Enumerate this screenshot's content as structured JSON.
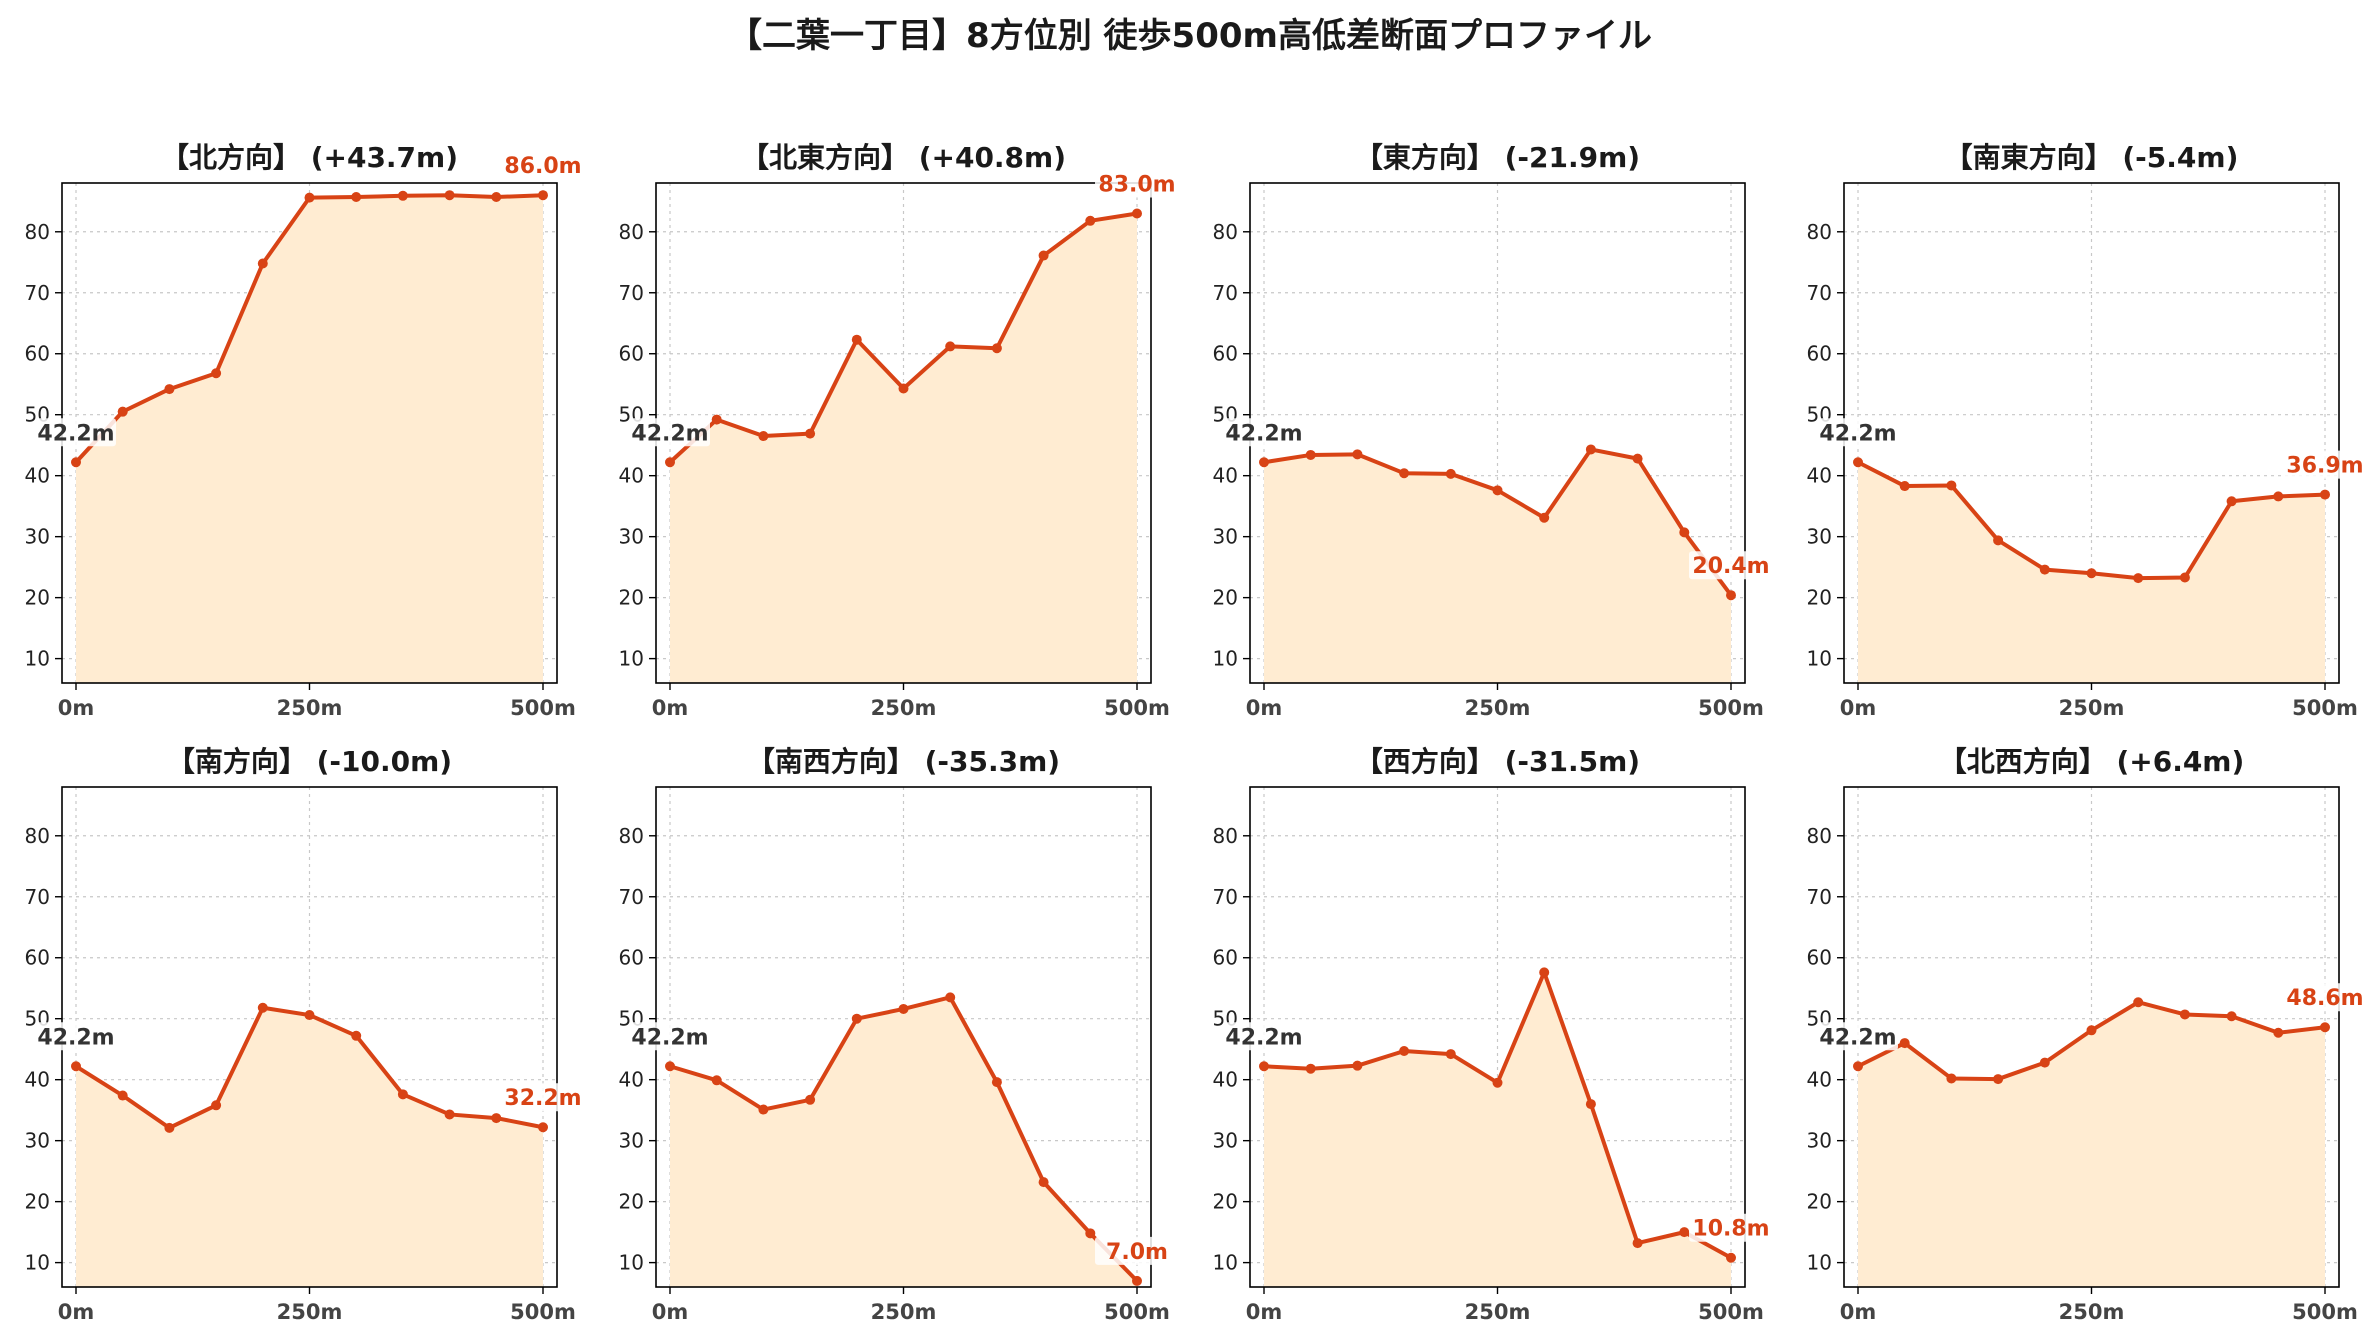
{
  "title": "【二葉一丁目】8方位別 徒歩500m高低差断面プロファイル",
  "colors": {
    "line": "#d84315",
    "fill": "#ffecd2",
    "start_label": "#333333",
    "end_label": "#d84315",
    "grid": "#c8c8c8"
  },
  "chart_data": [
    {
      "type": "area",
      "title": "【北方向】 (+43.7m)",
      "x": [
        0,
        50,
        100,
        150,
        200,
        250,
        300,
        350,
        400,
        450,
        500
      ],
      "values": [
        42.2,
        50.5,
        54.2,
        56.8,
        74.8,
        85.6,
        85.7,
        85.9,
        86.0,
        85.7,
        86.0
      ],
      "start_label": "42.2m",
      "end_label": "86.0m",
      "ylim": [
        6,
        88
      ],
      "yticks": [
        10,
        20,
        30,
        40,
        50,
        60,
        70,
        80
      ],
      "xticks": [
        "0m",
        "250m",
        "500m"
      ],
      "grid": true
    },
    {
      "type": "area",
      "title": "【北東方向】 (+40.8m)",
      "x": [
        0,
        50,
        100,
        150,
        200,
        250,
        300,
        350,
        400,
        450,
        500
      ],
      "values": [
        42.2,
        49.2,
        46.5,
        46.9,
        62.3,
        54.3,
        61.2,
        60.9,
        76.1,
        81.8,
        83.0
      ],
      "start_label": "42.2m",
      "end_label": "83.0m",
      "ylim": [
        6,
        88
      ],
      "yticks": [
        10,
        20,
        30,
        40,
        50,
        60,
        70,
        80
      ],
      "xticks": [
        "0m",
        "250m",
        "500m"
      ],
      "grid": true
    },
    {
      "type": "area",
      "title": "【東方向】 (-21.9m)",
      "x": [
        0,
        50,
        100,
        150,
        200,
        250,
        300,
        350,
        400,
        450,
        500
      ],
      "values": [
        42.2,
        43.4,
        43.5,
        40.4,
        40.3,
        37.6,
        33.1,
        44.3,
        42.8,
        30.7,
        20.4
      ],
      "start_label": "42.2m",
      "end_label": "20.4m",
      "ylim": [
        6,
        88
      ],
      "yticks": [
        10,
        20,
        30,
        40,
        50,
        60,
        70,
        80
      ],
      "xticks": [
        "0m",
        "250m",
        "500m"
      ],
      "grid": true
    },
    {
      "type": "area",
      "title": "【南東方向】 (-5.4m)",
      "x": [
        0,
        50,
        100,
        150,
        200,
        250,
        300,
        350,
        400,
        450,
        500
      ],
      "values": [
        42.2,
        38.3,
        38.4,
        29.4,
        24.6,
        24.0,
        23.2,
        23.3,
        35.8,
        36.6,
        36.9
      ],
      "start_label": "42.2m",
      "end_label": "36.9m",
      "ylim": [
        6,
        88
      ],
      "yticks": [
        10,
        20,
        30,
        40,
        50,
        60,
        70,
        80
      ],
      "xticks": [
        "0m",
        "250m",
        "500m"
      ],
      "grid": true
    },
    {
      "type": "area",
      "title": "【南方向】 (-10.0m)",
      "x": [
        0,
        50,
        100,
        150,
        200,
        250,
        300,
        350,
        400,
        450,
        500
      ],
      "values": [
        42.2,
        37.4,
        32.1,
        35.8,
        51.8,
        50.6,
        47.2,
        37.6,
        34.3,
        33.7,
        32.2
      ],
      "start_label": "42.2m",
      "end_label": "32.2m",
      "ylim": [
        6,
        88
      ],
      "yticks": [
        10,
        20,
        30,
        40,
        50,
        60,
        70,
        80
      ],
      "xticks": [
        "0m",
        "250m",
        "500m"
      ],
      "grid": true
    },
    {
      "type": "area",
      "title": "【南西方向】 (-35.3m)",
      "x": [
        0,
        50,
        100,
        150,
        200,
        250,
        300,
        350,
        400,
        450,
        500
      ],
      "values": [
        42.2,
        39.9,
        35.1,
        36.7,
        50.0,
        51.6,
        53.5,
        39.6,
        23.2,
        14.8,
        7.0
      ],
      "start_label": "42.2m",
      "end_label": "7.0m",
      "ylim": [
        6,
        88
      ],
      "yticks": [
        10,
        20,
        30,
        40,
        50,
        60,
        70,
        80
      ],
      "xticks": [
        "0m",
        "250m",
        "500m"
      ],
      "grid": true
    },
    {
      "type": "area",
      "title": "【西方向】 (-31.5m)",
      "x": [
        0,
        50,
        100,
        150,
        200,
        250,
        300,
        350,
        400,
        450,
        500
      ],
      "values": [
        42.2,
        41.8,
        42.3,
        44.7,
        44.2,
        39.5,
        57.6,
        36.0,
        13.2,
        15.0,
        10.8
      ],
      "start_label": "42.2m",
      "end_label": "10.8m",
      "ylim": [
        6,
        88
      ],
      "yticks": [
        10,
        20,
        30,
        40,
        50,
        60,
        70,
        80
      ],
      "xticks": [
        "0m",
        "250m",
        "500m"
      ],
      "grid": true
    },
    {
      "type": "area",
      "title": "【北西方向】 (+6.4m)",
      "x": [
        0,
        50,
        100,
        150,
        200,
        250,
        300,
        350,
        400,
        450,
        500
      ],
      "values": [
        42.2,
        46.0,
        40.2,
        40.1,
        42.8,
        48.1,
        52.7,
        50.7,
        50.4,
        47.7,
        48.6
      ],
      "start_label": "42.2m",
      "end_label": "48.6m",
      "ylim": [
        6,
        88
      ],
      "yticks": [
        10,
        20,
        30,
        40,
        50,
        60,
        70,
        80
      ],
      "xticks": [
        "0m",
        "250m",
        "500m"
      ],
      "grid": true
    }
  ]
}
